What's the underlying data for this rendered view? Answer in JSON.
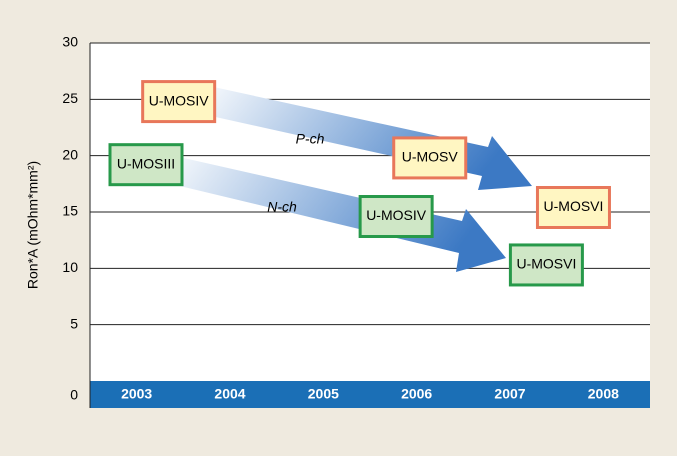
{
  "chart_data": {
    "type": "roadmap",
    "y_axis_label": "Ron*A (mOhm*mm²)",
    "categories": [
      "2003",
      "2004",
      "2005",
      "2006",
      "2007",
      "2008"
    ],
    "ylim": [
      0,
      30
    ],
    "yticks": [
      0,
      5,
      10,
      15,
      20,
      25,
      30
    ],
    "grid": true,
    "series": [
      {
        "name": "P-ch",
        "color": "#e8775a",
        "fill": "#fff6c2",
        "labels": [
          "U-MOSIV",
          "U-MOSV",
          "U-MOSVI"
        ],
        "x": [
          0.45,
          3.14,
          4.68
        ],
        "values": [
          24.8,
          19.8,
          15.4
        ]
      },
      {
        "name": "N-ch",
        "color": "#27994a",
        "fill": "#cfe7c6",
        "labels": [
          "U-MOSIII",
          "U-MOSIV",
          "U-MOSVI"
        ],
        "x": [
          0.1,
          2.78,
          4.39
        ],
        "values": [
          19.2,
          14.6,
          10.3
        ]
      }
    ]
  }
}
